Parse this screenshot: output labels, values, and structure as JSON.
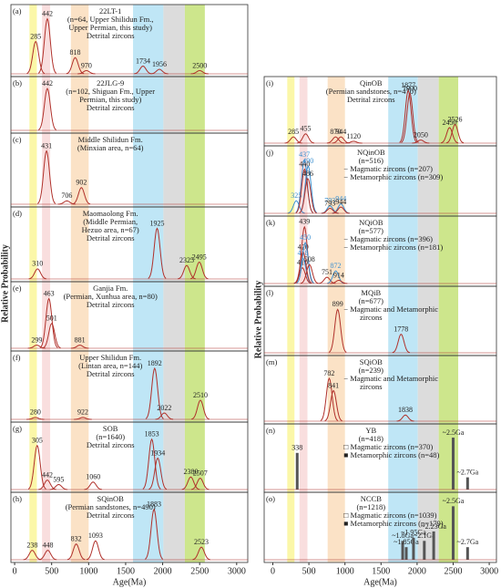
{
  "chart_data": [
    {
      "type": "line",
      "x_label": "Age(Ma)",
      "y_label": "Relative Probability",
      "xlim": [
        -50,
        3150
      ],
      "xticks": [
        0,
        500,
        1000,
        1500,
        2000,
        2500,
        3000
      ],
      "bands": [
        {
          "range": [
            200,
            300
          ],
          "color": "#fbf7a8"
        },
        {
          "range": [
            370,
            480
          ],
          "color": "#f9dede"
        },
        {
          "range": [
            760,
            1000
          ],
          "color": "#fbe2c6"
        },
        {
          "range": [
            1600,
            2010
          ],
          "color": "#bfe6f6"
        },
        {
          "range": [
            2010,
            2300
          ],
          "color": "#dcdcdc"
        },
        {
          "range": [
            2300,
            2570
          ],
          "color": "#cde68c"
        }
      ],
      "panels": [
        {
          "letter": "(a)",
          "text": [
            "22LT-1",
            "(n=64, Upper Shilidun Fm.,",
            "Upper Permian, this study)",
            "Detrital zircons"
          ],
          "peaks": [
            {
              "x": 285,
              "height": 0.5
            },
            {
              "x": 442,
              "height": 0.85
            },
            {
              "x": 818,
              "height": 0.25
            },
            {
              "x": 970,
              "height": 0.05
            },
            {
              "x": 1734,
              "height": 0.12
            },
            {
              "x": 1956,
              "height": 0.07
            },
            {
              "x": 2500,
              "height": 0.05
            }
          ]
        },
        {
          "letter": "(b)",
          "text": [
            "22JLG-9",
            "(n=102, Shiguan Fm., Upper",
            "Permian, this study)",
            "Detrital zircons"
          ],
          "peaks": [
            {
              "x": 442,
              "height": 0.85
            }
          ]
        },
        {
          "letter": "(c)",
          "text": [
            "Middle Shilidun Fm.",
            "(Minxian area, n=64)"
          ],
          "peaks": [
            {
              "x": 431,
              "height": 0.8
            },
            {
              "x": 706,
              "height": 0.05
            },
            {
              "x": 902,
              "height": 0.25
            }
          ]
        },
        {
          "letter": "(d)",
          "text": [
            "Maomaolong Fm.",
            "(Middle Permian,",
            "Hezuo area, n=67)",
            "Detrital zircons"
          ],
          "peaks": [
            {
              "x": 310,
              "height": 0.15
            },
            {
              "x": 1925,
              "height": 0.75
            },
            {
              "x": 2325,
              "height": 0.2
            },
            {
              "x": 2495,
              "height": 0.25
            }
          ]
        },
        {
          "letter": "(e)",
          "text": [
            "Ganjia Fm.",
            "(Permian, Xunhua area, n=80)",
            "Detrital zircons"
          ],
          "peaks": [
            {
              "x": 299,
              "height": 0.05
            },
            {
              "x": 463,
              "height": 0.8
            },
            {
              "x": 501,
              "height": 0.4
            },
            {
              "x": 881,
              "height": 0.05
            }
          ]
        },
        {
          "letter": "(f)",
          "text": [
            "Upper Shilidun Fm.",
            "(Lintan area, n=144)",
            "Detrital zircons"
          ],
          "peaks": [
            {
              "x": 280,
              "height": 0.03
            },
            {
              "x": 922,
              "height": 0.03
            },
            {
              "x": 1892,
              "height": 0.8
            },
            {
              "x": 2022,
              "height": 0.1
            },
            {
              "x": 2510,
              "height": 0.3
            }
          ]
        },
        {
          "letter": "(g)",
          "text": [
            "SOB",
            "(n=1640)",
            "Detrital zircons"
          ],
          "peaks": [
            {
              "x": 305,
              "height": 0.7
            },
            {
              "x": 442,
              "height": 0.15
            },
            {
              "x": 595,
              "height": 0.08
            },
            {
              "x": 1060,
              "height": 0.12
            },
            {
              "x": 1853,
              "height": 0.8
            },
            {
              "x": 1934,
              "height": 0.5
            },
            {
              "x": 2380,
              "height": 0.2
            },
            {
              "x": 2507,
              "height": 0.18
            }
          ]
        },
        {
          "letter": "(h)",
          "text": [
            "SQinOB",
            "(Permian sandstones, n=490)",
            "Detrital zircons"
          ],
          "peaks": [
            {
              "x": 238,
              "height": 0.15
            },
            {
              "x": 448,
              "height": 0.15
            },
            {
              "x": 832,
              "height": 0.25
            },
            {
              "x": 1093,
              "height": 0.3
            },
            {
              "x": 1883,
              "height": 0.8
            },
            {
              "x": 2523,
              "height": 0.2
            }
          ]
        }
      ]
    },
    {
      "type": "line",
      "x_label": "Age(Ma)",
      "y_label": "Relative Probability",
      "xlim": [
        -120,
        3100
      ],
      "xticks": [
        0,
        500,
        1000,
        1500,
        2000,
        2500,
        3000
      ],
      "bands": [
        {
          "range": [
            200,
            300
          ],
          "color": "#fbf7a8"
        },
        {
          "range": [
            370,
            480
          ],
          "color": "#f9dede"
        },
        {
          "range": [
            760,
            1000
          ],
          "color": "#fbe2c6"
        },
        {
          "range": [
            1600,
            2010
          ],
          "color": "#bfe6f6"
        },
        {
          "range": [
            2010,
            2300
          ],
          "color": "#dcdcdc"
        },
        {
          "range": [
            2300,
            2570
          ],
          "color": "#cde68c"
        }
      ],
      "panels": [
        {
          "letter": "(i)",
          "text": [
            "QinOB",
            "(Permian sandstones, n=470)",
            "Detrital zircons"
          ],
          "peaks": [
            {
              "x": 285,
              "height": 0.1
            },
            {
              "x": 455,
              "height": 0.15
            },
            {
              "x": 870,
              "height": 0.1
            },
            {
              "x": 944,
              "height": 0.1
            },
            {
              "x": 1120,
              "height": 0.03
            },
            {
              "x": 1877,
              "height": 0.85
            },
            {
              "x": 1900,
              "height": 0.8
            },
            {
              "x": 2050,
              "height": 0.05
            },
            {
              "x": 2450,
              "height": 0.25
            },
            {
              "x": 2526,
              "height": 0.3
            }
          ]
        },
        {
          "letter": "(j)",
          "text": [
            "NQinOB",
            "(n=516)",
            "− Magmatic zircons (n=207)",
            "− Metamorphic zircons (n=309)"
          ],
          "peaks": [
            {
              "x": 325,
              "height": 0.2,
              "color": "#3a8fd0"
            },
            {
              "x": 437,
              "height": 0.85,
              "color": "#3a8fd0"
            },
            {
              "x": 440,
              "height": 0.7
            },
            {
              "x": 490,
              "height": 0.75,
              "color": "#3a8fd0"
            },
            {
              "x": 486,
              "height": 0.55
            },
            {
              "x": 793,
              "height": 0.12,
              "color": "#3a8fd0"
            },
            {
              "x": 944,
              "height": 0.15,
              "color": "#3a8fd0"
            },
            {
              "x": 793,
              "height": 0.08
            },
            {
              "x": 944,
              "height": 0.1
            }
          ]
        },
        {
          "letter": "(k)",
          "text": [
            "NQiOB",
            "(n=577)",
            "− Magmatic zircons (n=396)",
            "− Metamorphic zircons (n=181)"
          ],
          "peaks": [
            {
              "x": 410,
              "height": 0.25
            },
            {
              "x": 418,
              "height": 0.4,
              "color": "#3a8fd0"
            },
            {
              "x": 420,
              "height": 0.5
            },
            {
              "x": 439,
              "height": 0.9
            },
            {
              "x": 450,
              "height": 0.65,
              "color": "#3a8fd0"
            },
            {
              "x": 508,
              "height": 0.3
            },
            {
              "x": 751,
              "height": 0.1
            },
            {
              "x": 872,
              "height": 0.2,
              "color": "#3a8fd0"
            },
            {
              "x": 914,
              "height": 0.05
            }
          ]
        },
        {
          "letter": "(l)",
          "text": [
            "MQiB",
            "(n=677)",
            "− Magmatic and Metamorphic",
            "zircons"
          ],
          "peaks": [
            {
              "x": 899,
              "height": 0.7
            },
            {
              "x": 1778,
              "height": 0.3
            }
          ]
        },
        {
          "letter": "(m)",
          "text": [
            "SQiOB",
            "(n=239)",
            "− Magmatic and Metamorphic",
            "zircons"
          ],
          "peaks": [
            {
              "x": 782,
              "height": 0.7
            },
            {
              "x": 841,
              "height": 0.5
            },
            {
              "x": 1838,
              "height": 0.1
            }
          ]
        },
        {
          "letter": "(n)",
          "style": "bars",
          "text": [
            "YB",
            "(n=418)",
            "□ Magmatic zircons (n=370)",
            "■ Metamorphic zircons (n=48)"
          ],
          "peaks": [
            {
              "x": 338,
              "height": 0.6
            },
            {
              "x": 2500,
              "height": 0.85,
              "label": "~2.5Ga"
            },
            {
              "x": 2700,
              "height": 0.2,
              "label": "~2.7Ga"
            }
          ]
        },
        {
          "letter": "(o)",
          "style": "bars",
          "text": [
            "NCCB",
            "(n=1218)",
            "□ Magmatic zircons (n=1039)",
            "■ Metamorphic zircons (n=179)"
          ],
          "peaks": [
            {
              "x": 1800,
              "height": 0.3,
              "label": "~1.8Ga"
            },
            {
              "x": 1850,
              "height": 0.2,
              "label": "~1.85Ga"
            },
            {
              "x": 1950,
              "height": 0.35,
              "label": "~1.95Ga"
            },
            {
              "x": 2100,
              "height": 0.3,
              "label": "~2.1Ga"
            },
            {
              "x": 2230,
              "height": 0.45,
              "label": "~2.23Ga"
            },
            {
              "x": 2500,
              "height": 0.85,
              "label": "~2.5Ga"
            },
            {
              "x": 2700,
              "height": 0.2,
              "label": "~2.7Ga"
            }
          ]
        }
      ]
    }
  ]
}
